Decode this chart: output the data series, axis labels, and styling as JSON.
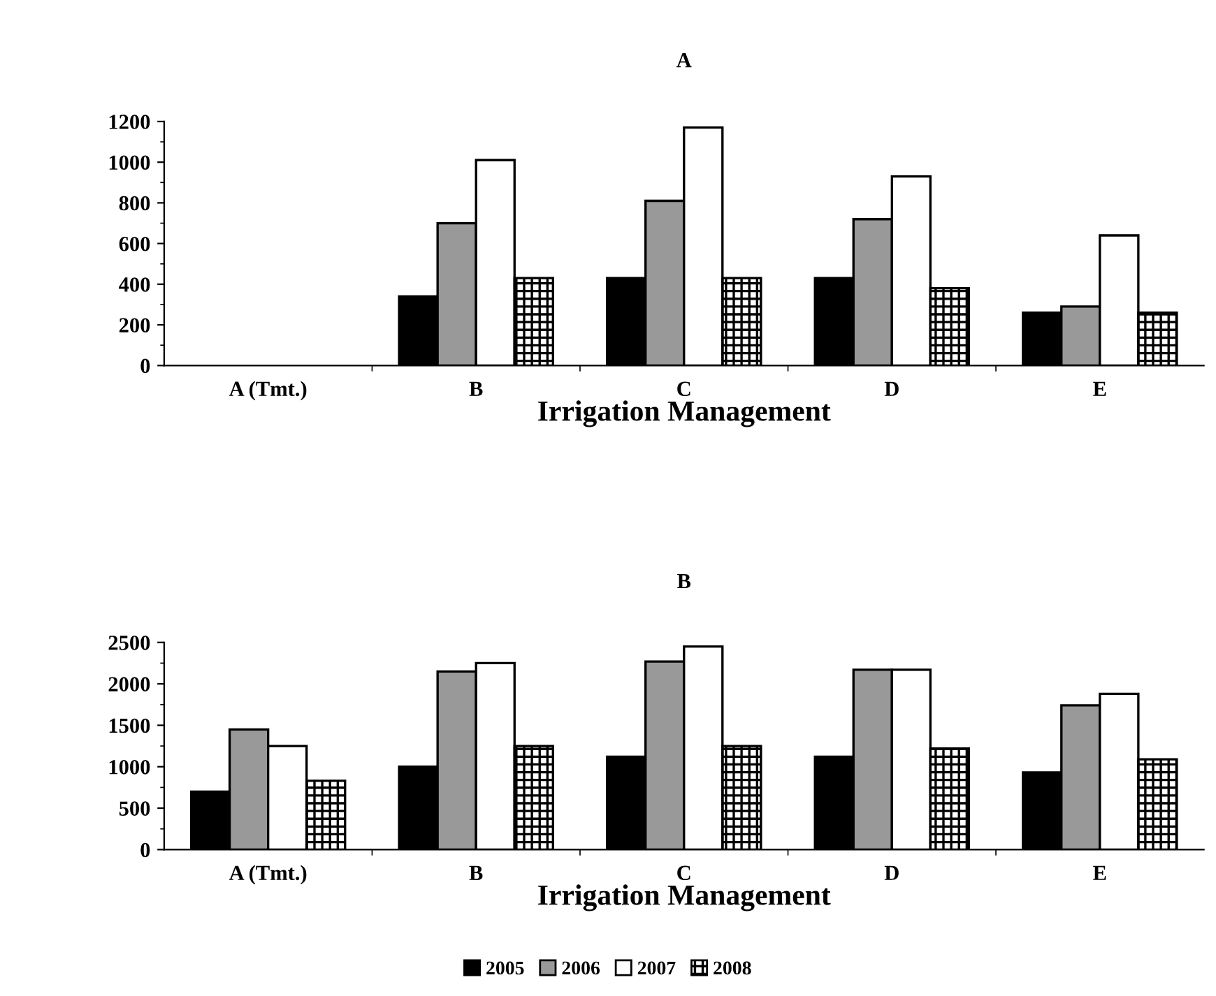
{
  "chart_data": [
    {
      "type": "bar",
      "title": "A",
      "xlabel": "Irrigation Management",
      "categories": [
        "A (Tmt.)",
        "B",
        "C",
        "D",
        "E"
      ],
      "ylim": [
        0,
        1200
      ],
      "yticks": [
        0,
        200,
        400,
        600,
        800,
        1000,
        1200
      ],
      "grid": false,
      "legend": "bottom",
      "series": [
        {
          "name": "2005",
          "color": "#000000",
          "values": [
            null,
            340,
            430,
            430,
            260
          ]
        },
        {
          "name": "2006",
          "color": "#999999",
          "values": [
            null,
            700,
            810,
            720,
            290
          ]
        },
        {
          "name": "2007",
          "color": "#ffffff",
          "values": [
            null,
            1010,
            1170,
            930,
            640
          ]
        },
        {
          "name": "2008",
          "color": "#000000",
          "values": [
            null,
            430,
            430,
            380,
            260
          ]
        }
      ]
    },
    {
      "type": "bar",
      "title": "B",
      "xlabel": "Irrigation Management",
      "categories": [
        "A (Tmt.)",
        "B",
        "C",
        "D",
        "E"
      ],
      "ylim": [
        0,
        2500
      ],
      "yticks": [
        0,
        500,
        1000,
        1500,
        2000,
        2500
      ],
      "grid": false,
      "legend": "bottom",
      "series": [
        {
          "name": "2005",
          "color": "#000000",
          "values": [
            700,
            1000,
            1120,
            1120,
            930
          ]
        },
        {
          "name": "2006",
          "color": "#999999",
          "values": [
            1450,
            2150,
            2270,
            2170,
            1740
          ]
        },
        {
          "name": "2007",
          "color": "#ffffff",
          "values": [
            1250,
            2250,
            2450,
            2170,
            1880
          ]
        },
        {
          "name": "2008",
          "color": "#000000",
          "values": [
            830,
            1250,
            1250,
            1220,
            1090
          ]
        }
      ]
    }
  ]
}
